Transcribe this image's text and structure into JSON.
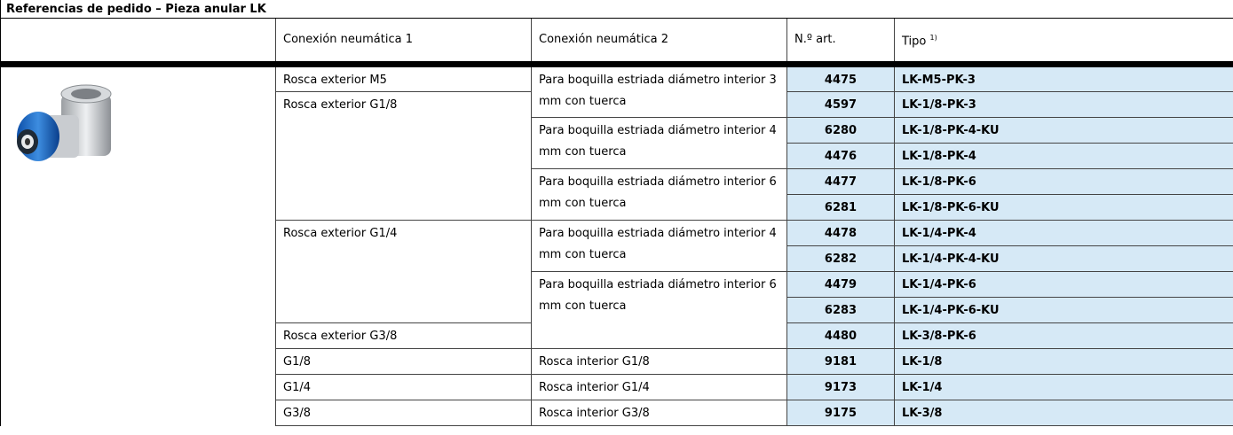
{
  "title": "Referencias de pedido – Pieza anular LK",
  "table": {
    "headers": [
      "Conexión neumática 1",
      "Conexión neumática 2",
      "N.º art.",
      "Tipo"
    ],
    "header_footnote": "1)",
    "rows": [
      {
        "conn1": "Rosca exterior M5",
        "conn2": "Para boquilla estriada diámetro interior 3 mm con tuerca",
        "art": "4475",
        "type": "LK-M5-PK-3"
      },
      {
        "conn1": "Rosca exterior G1/8",
        "conn2": null,
        "art": "4597",
        "type": "LK-1/8-PK-3"
      },
      {
        "conn1": null,
        "conn2": "Para boquilla estriada diámetro interior 4 mm con tuerca",
        "art": "6280",
        "type": "LK-1/8-PK-4-KU"
      },
      {
        "conn1": null,
        "conn2": null,
        "art": "4476",
        "type": "LK-1/8-PK-4"
      },
      {
        "conn1": null,
        "conn2": "Para boquilla estriada diámetro interior 6 mm con tuerca",
        "art": "4477",
        "type": "LK-1/8-PK-6"
      },
      {
        "conn1": null,
        "conn2": null,
        "art": "6281",
        "type": "LK-1/8-PK-6-KU"
      },
      {
        "conn1": "Rosca exterior G1/4",
        "conn2": "Para boquilla estriada diámetro interior 4 mm con tuerca",
        "art": "4478",
        "type": "LK-1/4-PK-4"
      },
      {
        "conn1": null,
        "conn2": null,
        "art": "6282",
        "type": "LK-1/4-PK-4-KU"
      },
      {
        "conn1": null,
        "conn2": "Para boquilla estriada diámetro interior 6 mm con tuerca",
        "art": "4479",
        "type": "LK-1/4-PK-6"
      },
      {
        "conn1": null,
        "conn2": null,
        "art": "6283",
        "type": "LK-1/4-PK-6-KU"
      },
      {
        "conn1": "Rosca exterior G3/8",
        "conn2": null,
        "art": "4480",
        "type": "LK-3/8-PK-6"
      },
      {
        "conn1": "G1/8",
        "conn2": "Rosca interior G1/8",
        "art": "9181",
        "type": "LK-1/8"
      },
      {
        "conn1": "G1/4",
        "conn2": "Rosca interior G1/4",
        "art": "9173",
        "type": "LK-1/4"
      },
      {
        "conn1": "G3/8",
        "conn2": "Rosca interior G3/8",
        "art": "9175",
        "type": "LK-3/8"
      }
    ]
  }
}
